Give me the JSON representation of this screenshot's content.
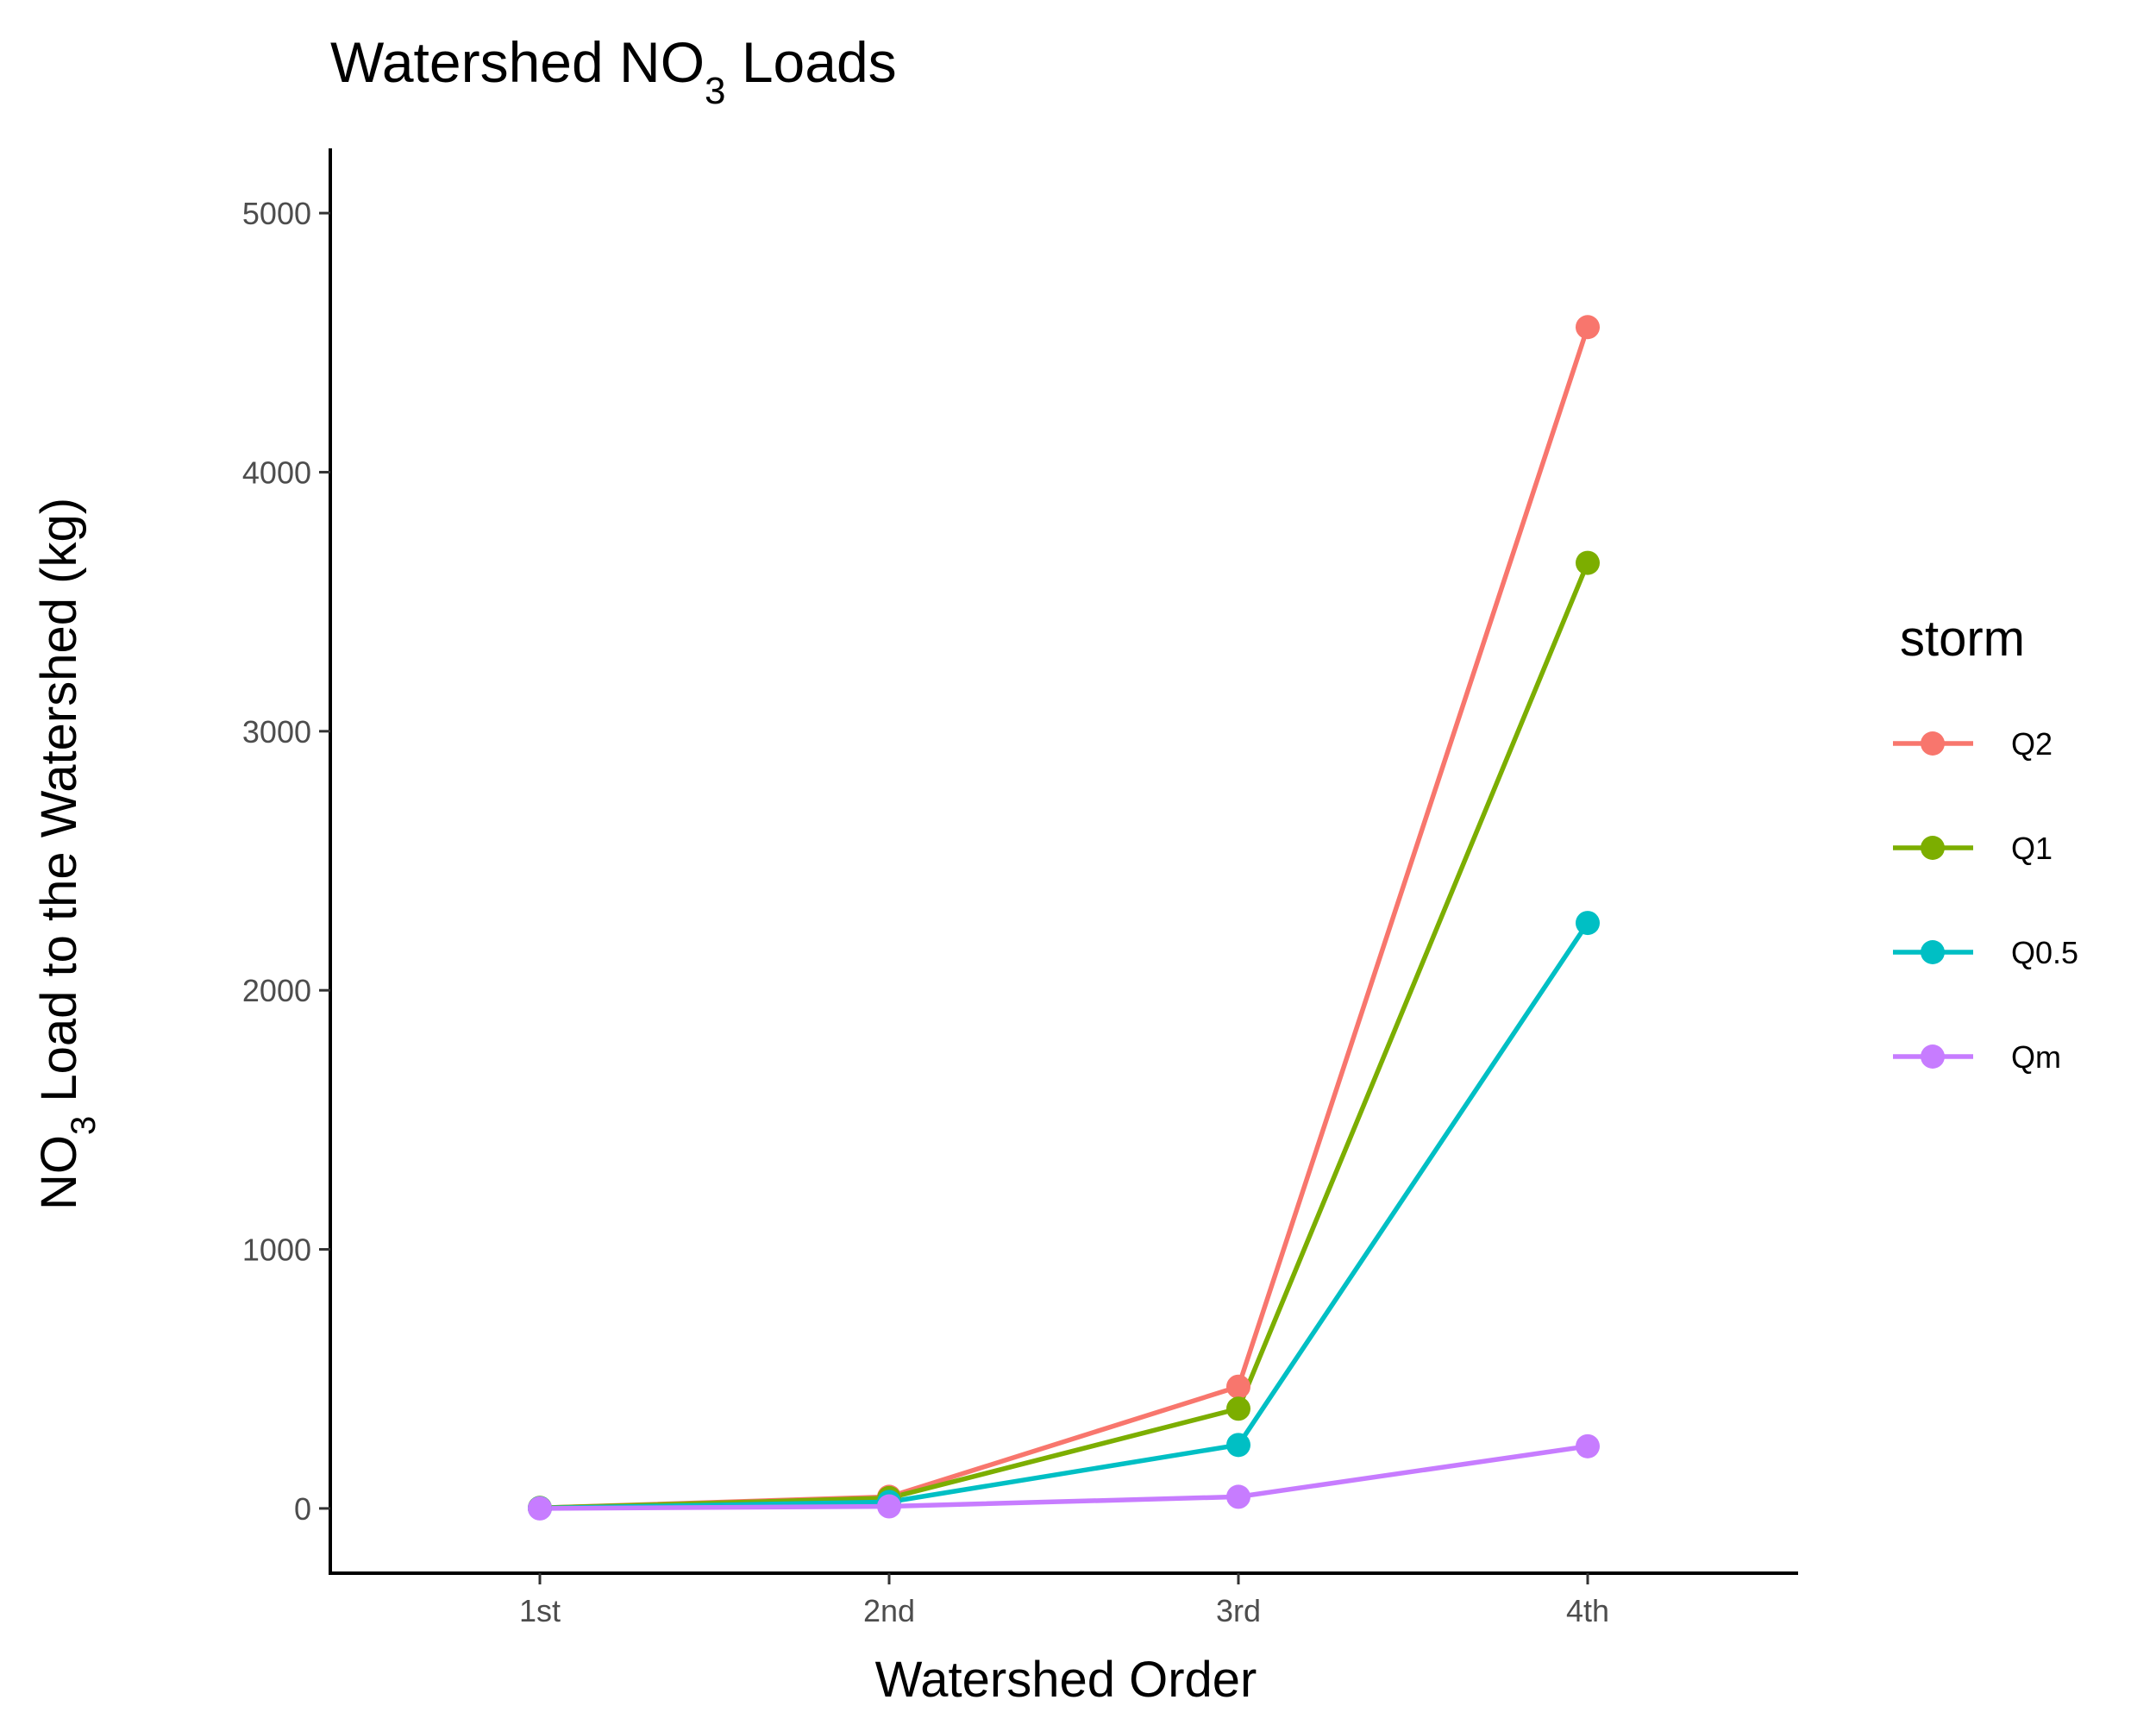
{
  "chart_data": {
    "type": "line",
    "title": {
      "prefix": "Watershed NO",
      "subscript": "3",
      "suffix": " Loads"
    },
    "xlabel": "Watershed Order",
    "ylabel": {
      "prefix": "NO",
      "subscript": "3",
      "suffix": " Load to the Watershed (kg)"
    },
    "categories": [
      "1st",
      "2nd",
      "3rd",
      "4th"
    ],
    "ylim": [
      -250,
      5250
    ],
    "yticks": [
      0,
      1000,
      2000,
      3000,
      4000,
      5000
    ],
    "grid": false,
    "legend": {
      "title": "storm",
      "position": "right"
    },
    "series": [
      {
        "name": "Q2",
        "color": "#F8766D",
        "values": [
          2,
          45,
          470,
          4560
        ]
      },
      {
        "name": "Q1",
        "color": "#7CAE00",
        "values": [
          2,
          40,
          385,
          3650
        ]
      },
      {
        "name": "Q0.5",
        "color": "#00BFC4",
        "values": [
          1,
          25,
          245,
          2260
        ]
      },
      {
        "name": "Qm",
        "color": "#C77CFF",
        "values": [
          0,
          8,
          45,
          240
        ]
      }
    ]
  }
}
